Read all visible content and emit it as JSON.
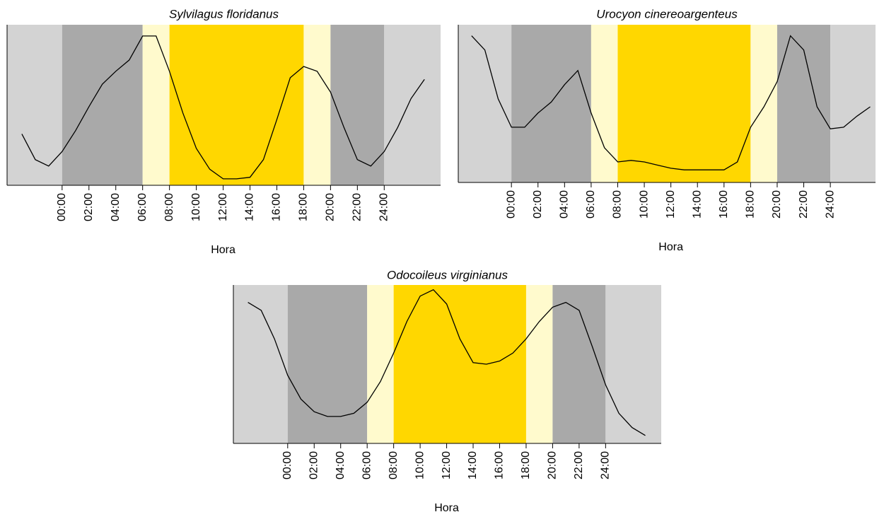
{
  "chart_data": [
    {
      "type": "line",
      "title": "Sylvilagus floridanus",
      "xlabel": "Hora",
      "xlim": [
        -4.1,
        28.2
      ],
      "ylim": [
        0,
        1
      ],
      "xticks": [
        {
          "value": 0,
          "label": "00:00"
        },
        {
          "value": 2,
          "label": "02:00"
        },
        {
          "value": 4,
          "label": "04:00"
        },
        {
          "value": 6,
          "label": "06:00"
        },
        {
          "value": 8,
          "label": "08:00"
        },
        {
          "value": 10,
          "label": "10:00"
        },
        {
          "value": 12,
          "label": "12:00"
        },
        {
          "value": 14,
          "label": "14:00"
        },
        {
          "value": 16,
          "label": "16:00"
        },
        {
          "value": 18,
          "label": "18:00"
        },
        {
          "value": 20,
          "label": "20:00"
        },
        {
          "value": 22,
          "label": "22:00"
        },
        {
          "value": 24,
          "label": "24:00"
        }
      ],
      "bands": [
        {
          "start": -4.1,
          "end": 0,
          "color": "#d3d3d3"
        },
        {
          "start": 0,
          "end": 6,
          "color": "#a9a9a9"
        },
        {
          "start": 6,
          "end": 8,
          "color": "#fffacd"
        },
        {
          "start": 8,
          "end": 18,
          "color": "#ffd700"
        },
        {
          "start": 18,
          "end": 20,
          "color": "#fffacd"
        },
        {
          "start": 20,
          "end": 24,
          "color": "#a9a9a9"
        },
        {
          "start": 24,
          "end": 28.2,
          "color": "#d3d3d3"
        }
      ],
      "color": "#000000",
      "x": [
        -3,
        -2,
        -1,
        0,
        1,
        2,
        3,
        4,
        5,
        6,
        7,
        8,
        9,
        10,
        11,
        12,
        13,
        14,
        15,
        16,
        17,
        18,
        19,
        20,
        21,
        22,
        23,
        24,
        25,
        26,
        27
      ],
      "values": [
        0.32,
        0.16,
        0.12,
        0.21,
        0.34,
        0.49,
        0.63,
        0.71,
        0.78,
        0.93,
        0.93,
        0.71,
        0.45,
        0.23,
        0.1,
        0.04,
        0.04,
        0.05,
        0.16,
        0.41,
        0.67,
        0.74,
        0.71,
        0.58,
        0.36,
        0.16,
        0.12,
        0.21,
        0.36,
        0.54,
        0.66
      ]
    },
    {
      "type": "line",
      "title": "Urocyon cinereoargenteus",
      "xlabel": "Hora",
      "xlim": [
        -4,
        27.4
      ],
      "ylim": [
        0,
        1
      ],
      "xticks": [
        {
          "value": 0,
          "label": "00:00"
        },
        {
          "value": 2,
          "label": "02:00"
        },
        {
          "value": 4,
          "label": "04:00"
        },
        {
          "value": 6,
          "label": "06:00"
        },
        {
          "value": 8,
          "label": "08:00"
        },
        {
          "value": 10,
          "label": "10:00"
        },
        {
          "value": 12,
          "label": "12:00"
        },
        {
          "value": 14,
          "label": "14:00"
        },
        {
          "value": 16,
          "label": "16:00"
        },
        {
          "value": 18,
          "label": "18:00"
        },
        {
          "value": 20,
          "label": "20:00"
        },
        {
          "value": 22,
          "label": "22:00"
        },
        {
          "value": 24,
          "label": "24:00"
        }
      ],
      "bands": [
        {
          "start": -4,
          "end": 0,
          "color": "#d3d3d3"
        },
        {
          "start": 0,
          "end": 6,
          "color": "#a9a9a9"
        },
        {
          "start": 6,
          "end": 8,
          "color": "#fffacd"
        },
        {
          "start": 8,
          "end": 18,
          "color": "#ffd700"
        },
        {
          "start": 18,
          "end": 20,
          "color": "#fffacd"
        },
        {
          "start": 20,
          "end": 24,
          "color": "#a9a9a9"
        },
        {
          "start": 24,
          "end": 27.4,
          "color": "#d3d3d3"
        }
      ],
      "color": "#000000",
      "x": [
        -3,
        -2,
        -1,
        0,
        1,
        2,
        3,
        4,
        5,
        6,
        7,
        8,
        9,
        10,
        11,
        12,
        13,
        14,
        15,
        16,
        17,
        18,
        19,
        20,
        21,
        22,
        23,
        24,
        25,
        26,
        27
      ],
      "values": [
        0.93,
        0.84,
        0.53,
        0.35,
        0.35,
        0.44,
        0.51,
        0.62,
        0.71,
        0.44,
        0.22,
        0.13,
        0.14,
        0.13,
        0.11,
        0.09,
        0.08,
        0.08,
        0.08,
        0.08,
        0.13,
        0.35,
        0.48,
        0.64,
        0.93,
        0.84,
        0.48,
        0.34,
        0.35,
        0.42,
        0.48
      ]
    },
    {
      "type": "line",
      "title": "Odocoileus virginianus",
      "xlabel": "Hora",
      "xlim": [
        -4.1,
        28.2
      ],
      "ylim": [
        0,
        1
      ],
      "xticks": [
        {
          "value": 0,
          "label": "00:00"
        },
        {
          "value": 2,
          "label": "02:00"
        },
        {
          "value": 4,
          "label": "04:00"
        },
        {
          "value": 6,
          "label": "06:00"
        },
        {
          "value": 8,
          "label": "08:00"
        },
        {
          "value": 10,
          "label": "10:00"
        },
        {
          "value": 12,
          "label": "12:00"
        },
        {
          "value": 14,
          "label": "14:00"
        },
        {
          "value": 16,
          "label": "16:00"
        },
        {
          "value": 18,
          "label": "18:00"
        },
        {
          "value": 20,
          "label": "20:00"
        },
        {
          "value": 22,
          "label": "22:00"
        },
        {
          "value": 24,
          "label": "24:00"
        }
      ],
      "bands": [
        {
          "start": -4.1,
          "end": 0,
          "color": "#d3d3d3"
        },
        {
          "start": 0,
          "end": 6,
          "color": "#a9a9a9"
        },
        {
          "start": 6,
          "end": 8,
          "color": "#fffacd"
        },
        {
          "start": 8,
          "end": 18,
          "color": "#ffd700"
        },
        {
          "start": 18,
          "end": 20,
          "color": "#fffacd"
        },
        {
          "start": 20,
          "end": 24,
          "color": "#a9a9a9"
        },
        {
          "start": 24,
          "end": 28.2,
          "color": "#d3d3d3"
        }
      ],
      "color": "#000000",
      "x": [
        -3,
        -2,
        -1,
        0,
        1,
        2,
        3,
        4,
        5,
        6,
        7,
        8,
        9,
        10,
        11,
        12,
        13,
        14,
        15,
        16,
        17,
        18,
        19,
        20,
        21,
        22,
        23,
        24,
        25,
        26,
        27
      ],
      "values": [
        0.89,
        0.84,
        0.66,
        0.43,
        0.28,
        0.2,
        0.17,
        0.17,
        0.19,
        0.26,
        0.39,
        0.57,
        0.77,
        0.93,
        0.97,
        0.88,
        0.66,
        0.51,
        0.5,
        0.52,
        0.57,
        0.66,
        0.77,
        0.86,
        0.89,
        0.84,
        0.61,
        0.37,
        0.19,
        0.1,
        0.05
      ]
    }
  ]
}
